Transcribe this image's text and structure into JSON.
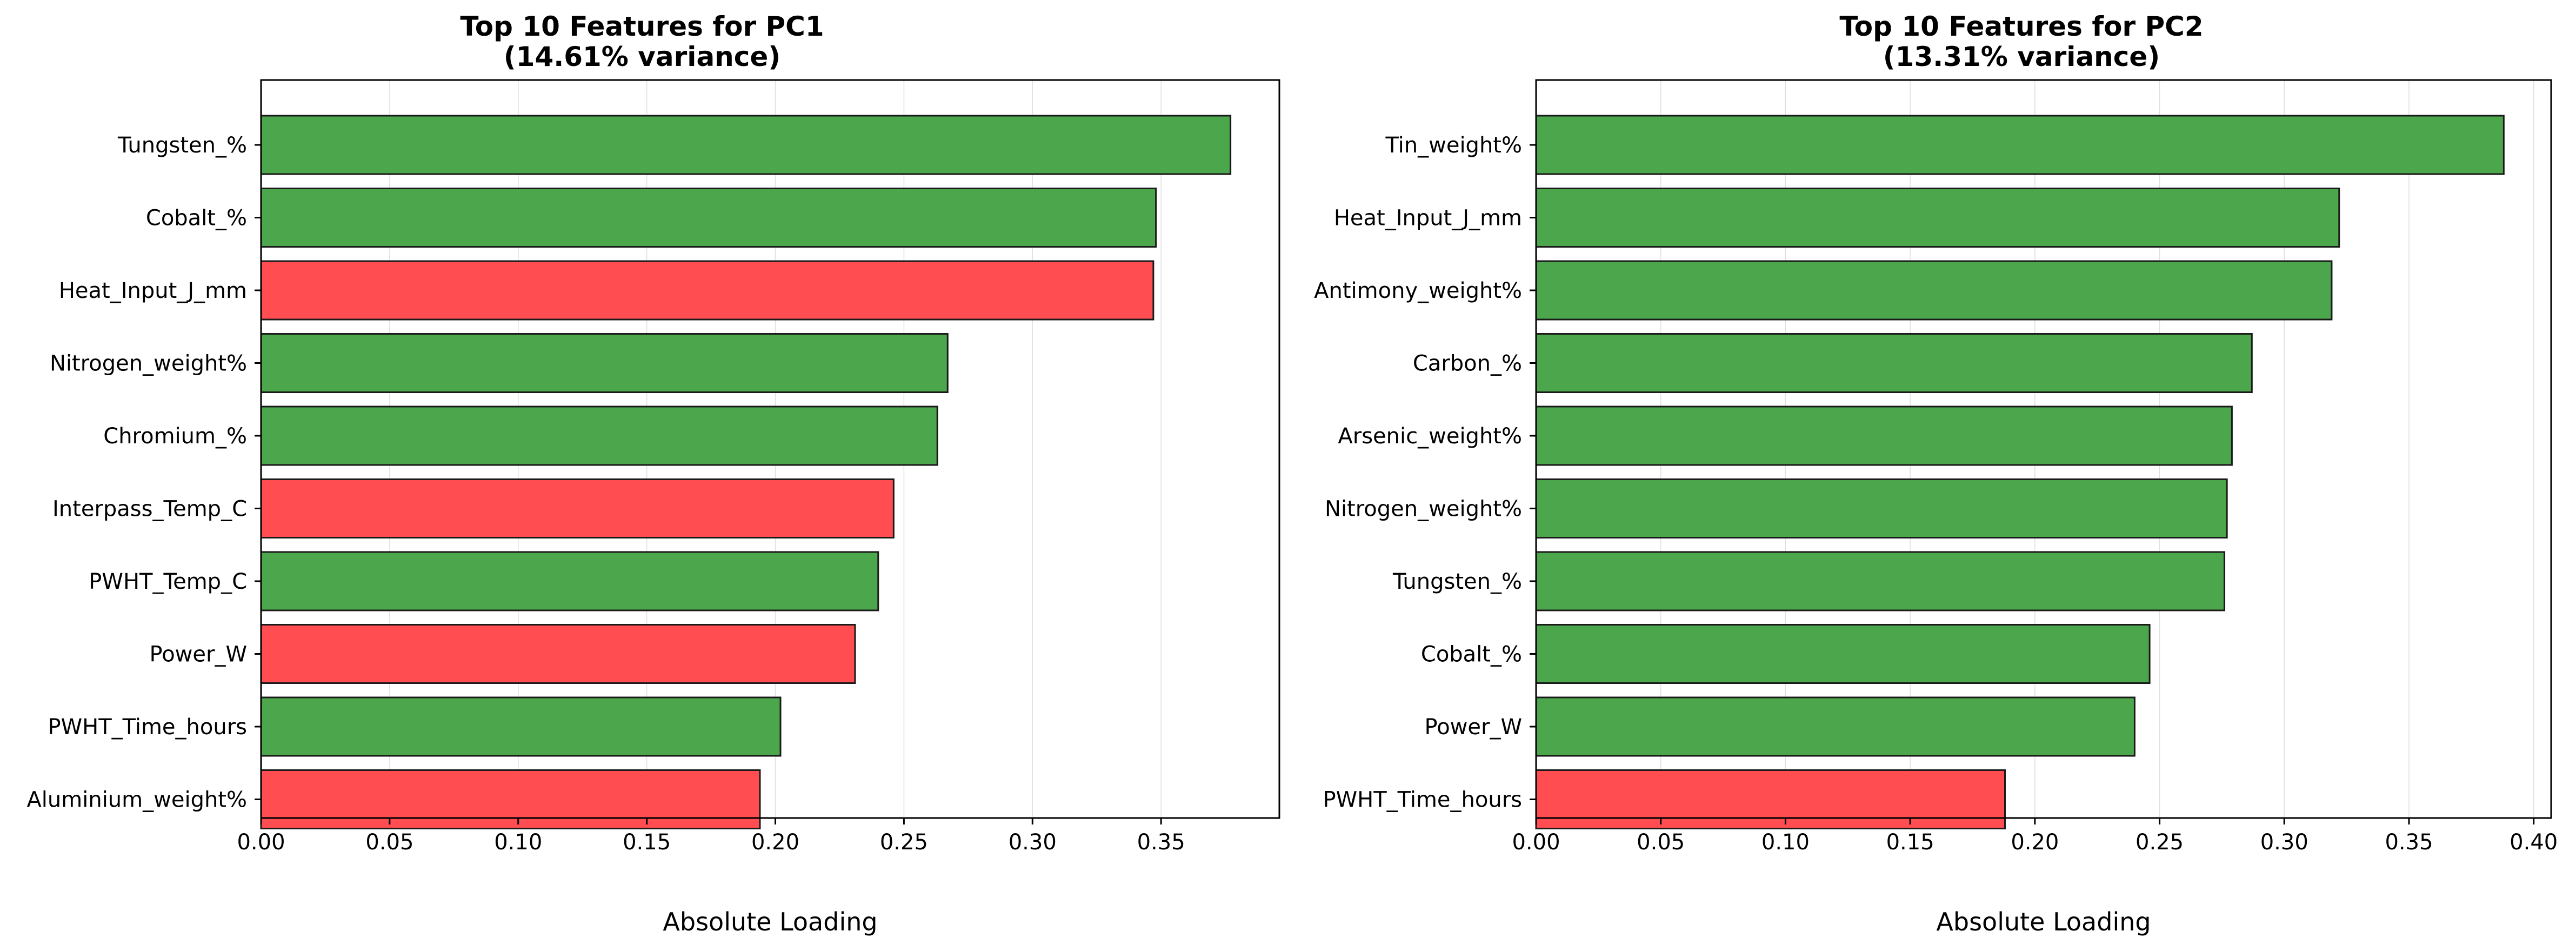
{
  "colors": {
    "positive": "#4ca64c",
    "negative": "#ff4d52"
  },
  "chart_data": [
    {
      "type": "bar",
      "orientation": "horizontal",
      "title_line1": "Top 10 Features for PC1",
      "title_line2": "(14.61% variance)",
      "xlabel": "Absolute Loading",
      "ylabel": "",
      "xlim": [
        0,
        0.396
      ],
      "xticks": [
        "0.00",
        "0.05",
        "0.10",
        "0.15",
        "0.20",
        "0.25",
        "0.30",
        "0.35"
      ],
      "grid": "x",
      "categories": [
        "Tungsten_%",
        "Cobalt_%",
        "Heat_Input_J_mm",
        "Nitrogen_weight%",
        "Chromium_%",
        "Interpass_Temp_C",
        "PWHT_Temp_C",
        "Power_W",
        "PWHT_Time_hours",
        "Aluminium_weight%"
      ],
      "values": [
        0.377,
        0.348,
        0.347,
        0.267,
        0.263,
        0.246,
        0.24,
        0.231,
        0.202,
        0.194
      ],
      "signs": [
        "positive",
        "positive",
        "negative",
        "positive",
        "positive",
        "negative",
        "positive",
        "negative",
        "positive",
        "negative"
      ]
    },
    {
      "type": "bar",
      "orientation": "horizontal",
      "title_line1": "Top 10 Features for PC2",
      "title_line2": "(13.31% variance)",
      "xlabel": "Absolute Loading",
      "ylabel": "",
      "xlim": [
        0,
        0.407
      ],
      "xticks": [
        "0.00",
        "0.05",
        "0.10",
        "0.15",
        "0.20",
        "0.25",
        "0.30",
        "0.35",
        "0.40"
      ],
      "grid": "x",
      "categories": [
        "Tin_weight%",
        "Heat_Input_J_mm",
        "Antimony_weight%",
        "Carbon_%",
        "Arsenic_weight%",
        "Nitrogen_weight%",
        "Tungsten_%",
        "Cobalt_%",
        "Power_W",
        "PWHT_Time_hours"
      ],
      "values": [
        0.388,
        0.322,
        0.319,
        0.287,
        0.279,
        0.277,
        0.276,
        0.246,
        0.24,
        0.188
      ],
      "signs": [
        "positive",
        "positive",
        "positive",
        "positive",
        "positive",
        "positive",
        "positive",
        "positive",
        "positive",
        "negative"
      ]
    }
  ]
}
